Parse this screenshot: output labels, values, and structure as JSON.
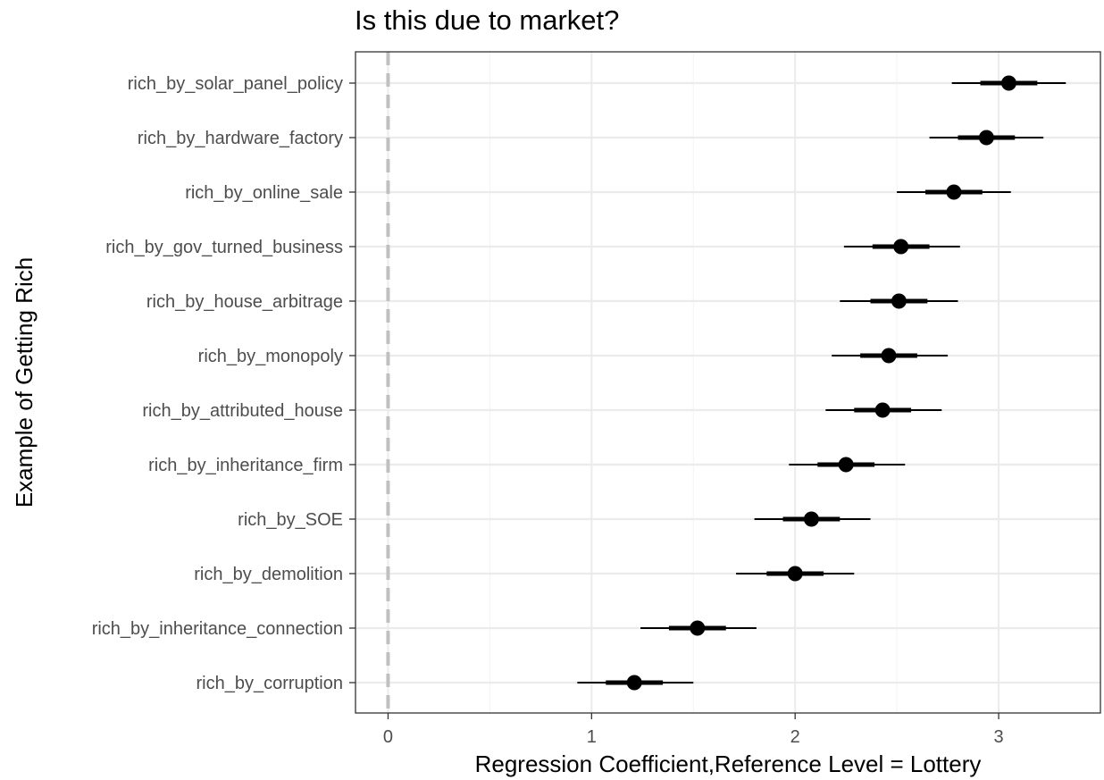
{
  "chart_data": {
    "type": "coefficient-plot",
    "title": "Is this due to market?",
    "xlabel": "Regression Coefficient,Reference Level = Lottery",
    "ylabel": "Example of Getting Rich",
    "xlim": [
      -0.16,
      3.5
    ],
    "x_ticks": [
      0,
      1,
      2,
      3
    ],
    "reference_line": 0,
    "grid": true,
    "categories": [
      "rich_by_solar_panel_policy",
      "rich_by_hardware_factory",
      "rich_by_online_sale",
      "rich_by_gov_turned_business",
      "rich_by_house_arbitrage",
      "rich_by_monopoly",
      "rich_by_attributed_house",
      "rich_by_inheritance_firm",
      "rich_by_SOE",
      "rich_by_demolition",
      "rich_by_inheritance_connection",
      "rich_by_corruption"
    ],
    "estimates": [
      3.05,
      2.94,
      2.78,
      2.52,
      2.51,
      2.46,
      2.43,
      2.25,
      2.08,
      2.0,
      1.52,
      1.21
    ],
    "inner_low": [
      2.91,
      2.8,
      2.64,
      2.38,
      2.37,
      2.32,
      2.29,
      2.11,
      1.94,
      1.86,
      1.38,
      1.07
    ],
    "inner_high": [
      3.19,
      3.08,
      2.92,
      2.66,
      2.65,
      2.6,
      2.57,
      2.39,
      2.22,
      2.14,
      1.66,
      1.35
    ],
    "outer_low": [
      2.77,
      2.66,
      2.5,
      2.24,
      2.22,
      2.18,
      2.15,
      1.97,
      1.8,
      1.71,
      1.24,
      0.93
    ],
    "outer_high": [
      3.33,
      3.22,
      3.06,
      2.81,
      2.8,
      2.75,
      2.72,
      2.54,
      2.37,
      2.29,
      1.81,
      1.5
    ]
  }
}
